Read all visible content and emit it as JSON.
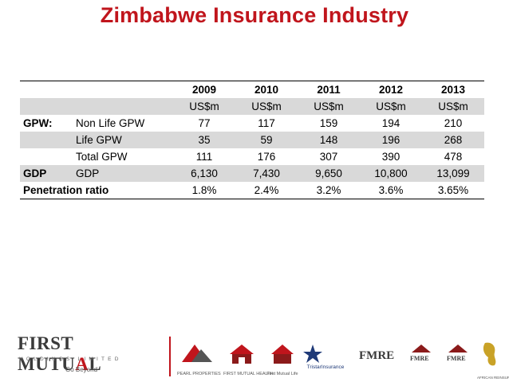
{
  "title": "Zimbabwe Insurance Industry",
  "table": {
    "years": [
      "2009",
      "2010",
      "2011",
      "2012",
      "2013"
    ],
    "units": [
      "US$m",
      "US$m",
      "US$m",
      "US$m",
      "US$m"
    ],
    "rows": [
      {
        "group": "GPW:",
        "label": "Non Life GPW",
        "values": [
          "77",
          "117",
          "159",
          "194",
          "210"
        ]
      },
      {
        "group": "",
        "label": "Life GPW",
        "values": [
          "35",
          "59",
          "148",
          "196",
          "268"
        ]
      },
      {
        "group": "",
        "label": "Total GPW",
        "values": [
          "111",
          "176",
          "307",
          "390",
          "478"
        ]
      },
      {
        "group": "GDP",
        "label": "GDP",
        "values": [
          "6,130",
          "7,430",
          "9,650",
          "10,800",
          "13,099"
        ]
      },
      {
        "group": "Penetration ratio",
        "label": "",
        "values": [
          "1.8%",
          "2.4%",
          "3.2%",
          "3.6%",
          "3.65%"
        ]
      }
    ]
  },
  "footer": {
    "company_name_a": "FIRST MUTU",
    "company_name_accent": "A",
    "company_name_b": "L",
    "company_sub": "HOLDINGS LIMITED",
    "tagline": "Go Beyond",
    "subsidiaries": [
      "PEARL PROPERTIES",
      "FIRST MUTUAL HEALTH",
      "First Mutual Life",
      "TristarInsurance",
      "FMRE",
      "FMRE",
      "FMRE",
      "AFRICAN REINSURANCE"
    ]
  },
  "colors": {
    "accent": "#c0151c",
    "shade": "#d9d9d9"
  }
}
